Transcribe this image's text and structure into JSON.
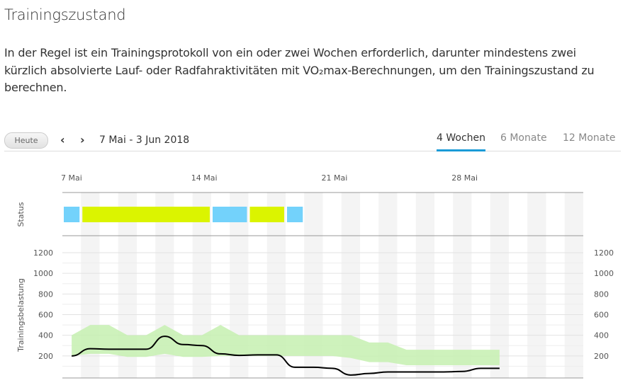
{
  "page": {
    "title": "Trainingszustand",
    "description": [
      "In der Regel ist ein Trainingsprotokoll von ein oder zwei Wochen erforderlich, darunter mindestens zwei",
      "kürzlich absolvierte Lauf- oder Radfahraktivitäten mit VO₂max-Berechnungen, um den Trainingszustand zu",
      "berechnen."
    ]
  },
  "toolbar": {
    "today_label": "Heute",
    "prev_icon": "chevron-left-icon",
    "next_icon": "chevron-right-icon",
    "date_range": "7 Mai - 3 Jun 2018",
    "tabs": [
      {
        "label": "4 Wochen",
        "active": true
      },
      {
        "label": "6 Monate",
        "active": false
      },
      {
        "label": "12 Monate",
        "active": false
      }
    ],
    "accent": "#1a9bd7"
  },
  "chart_data": {
    "type": "line",
    "days": 28,
    "x_ticks": [
      {
        "day": 0,
        "label": "7 Mai"
      },
      {
        "day": 7,
        "label": "14 Mai"
      },
      {
        "day": 14,
        "label": "21 Mai"
      },
      {
        "day": 21,
        "label": "28 Mai"
      }
    ],
    "status": {
      "label": "Status",
      "segments": [
        {
          "start": 0,
          "end": 1,
          "color": "#73d2fb"
        },
        {
          "start": 1,
          "end": 8,
          "color": "#dbf400"
        },
        {
          "start": 8,
          "end": 10,
          "color": "#73d2fb"
        },
        {
          "start": 10,
          "end": 12,
          "color": "#dbf400"
        },
        {
          "start": 12,
          "end": 13,
          "color": "#73d2fb"
        }
      ]
    },
    "ylabel": "Trainingsbelastung",
    "ylim": [
      0,
      1200
    ],
    "y_ticks": [
      200,
      400,
      600,
      800,
      1000,
      1200
    ],
    "load": [
      200,
      270,
      265,
      265,
      265,
      390,
      310,
      300,
      220,
      205,
      210,
      210,
      90,
      90,
      80,
      15,
      30,
      45,
      45,
      45,
      45,
      50,
      80,
      80
    ],
    "range_low": [
      200,
      220,
      220,
      190,
      190,
      220,
      190,
      190,
      200,
      200,
      200,
      200,
      200,
      200,
      200,
      180,
      140,
      140,
      110,
      110,
      110,
      110,
      110,
      110
    ],
    "range_high": [
      400,
      500,
      500,
      400,
      400,
      500,
      400,
      400,
      500,
      400,
      400,
      400,
      400,
      400,
      400,
      400,
      330,
      330,
      260,
      260,
      260,
      260,
      260,
      260
    ],
    "line_color": "#000000",
    "band_color": "#c6f0b0"
  }
}
